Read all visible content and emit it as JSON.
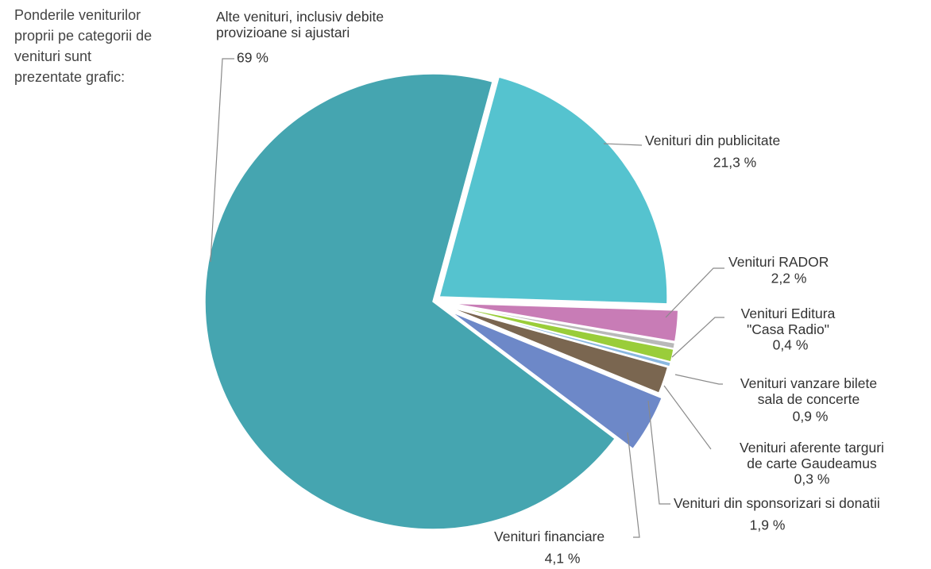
{
  "description": "Ponderile veniturilor proprii pe categorii de venituri sunt prezentate grafic:",
  "chart_data": {
    "type": "pie",
    "categories": [
      "Alte venituri, inclusiv debite\nprovizioane si ajustari",
      "Venituri din publicitate",
      "Venituri RADOR",
      "Venituri Editura\n\"Casa Radio\"",
      "Venituri vanzare bilete\nsala de concerte",
      "Venituri aferente targuri\nde carte Gaudeamus",
      "Venituri din sponsorizari si donatii",
      "Venituri financiare"
    ],
    "values": [
      69,
      21.3,
      2.2,
      0.4,
      0.9,
      0.3,
      1.9,
      4.1
    ],
    "value_labels": [
      "69 %",
      "21,3 %",
      "2,2 %",
      "0,4 %",
      "0,9 %",
      "0,3 %",
      "1,9 %",
      "4,1 %"
    ],
    "colors": [
      "#45a5b0",
      "#55c3cf",
      "#c87cb6",
      "#b9b9b9",
      "#9acd3a",
      "#8ab8e0",
      "#7a6650",
      "#6d88c8"
    ]
  }
}
